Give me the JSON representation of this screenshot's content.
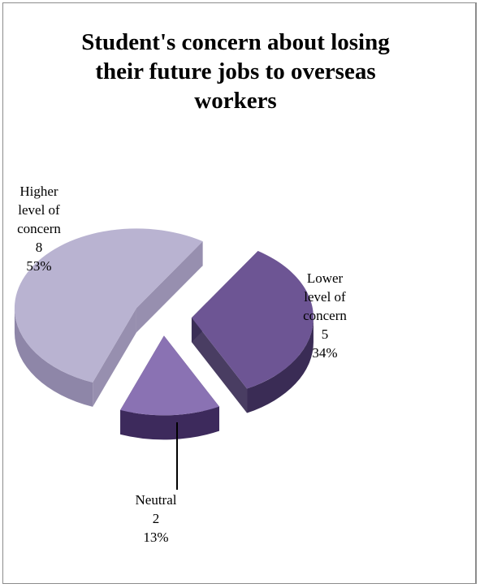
{
  "chart_data": {
    "type": "pie",
    "style": "3d-exploded",
    "title": "Student's concern about losing their future jobs to overseas workers",
    "slices": [
      {
        "name": "Higher level of concern",
        "label_lines": [
          "Higher",
          "level of",
          "concern"
        ],
        "value": 8,
        "percent": "53%",
        "color": "#b9b3d1",
        "side": "#8e86a8"
      },
      {
        "name": "Lower level of concern",
        "label_lines": [
          "Lower",
          "level of",
          "concern"
        ],
        "value": 5,
        "percent": "34%",
        "color": "#6d5594",
        "side": "#3a2c55"
      },
      {
        "name": "Neutral",
        "label_lines": [
          "Neutral"
        ],
        "value": 2,
        "percent": "13%",
        "color": "#8a72b3",
        "side": "#3d2a5c"
      }
    ]
  },
  "title_lines": [
    "Student's concern about losing",
    "their future jobs to overseas",
    "workers"
  ]
}
